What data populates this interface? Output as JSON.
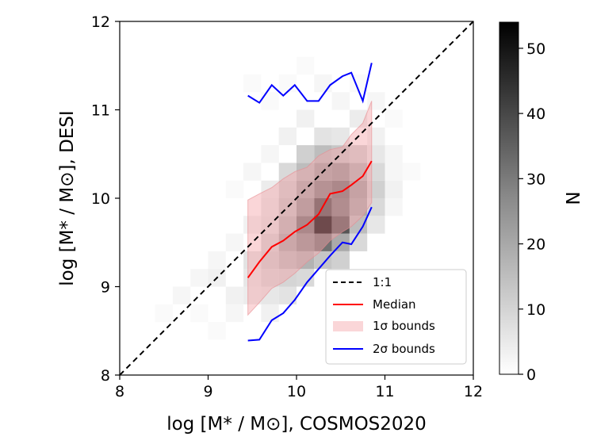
{
  "chart_data": {
    "type": "heatmap",
    "xlabel": "log [M* / M⊙], COSMOS2020",
    "ylabel": "log [M* / M⊙], DESI",
    "xlim": [
      8,
      12
    ],
    "ylim": [
      8,
      12
    ],
    "xticks": [
      "8",
      "9",
      "10",
      "11",
      "12"
    ],
    "yticks": [
      "8",
      "9",
      "10",
      "11",
      "12"
    ],
    "grid": false,
    "bin_width": 0.2,
    "hist_cells": [
      [
        8.4,
        8.6,
        1
      ],
      [
        8.6,
        8.8,
        2
      ],
      [
        8.8,
        8.6,
        1
      ],
      [
        8.8,
        9.0,
        2
      ],
      [
        9.0,
        8.4,
        1
      ],
      [
        9.0,
        9.0,
        3
      ],
      [
        9.0,
        9.2,
        2
      ],
      [
        9.2,
        8.6,
        2
      ],
      [
        9.2,
        8.8,
        3
      ],
      [
        9.2,
        9.4,
        2
      ],
      [
        9.2,
        10.0,
        1
      ],
      [
        9.4,
        8.8,
        4
      ],
      [
        9.4,
        9.0,
        5
      ],
      [
        9.4,
        9.2,
        6
      ],
      [
        9.4,
        9.6,
        3
      ],
      [
        9.4,
        10.2,
        2
      ],
      [
        9.4,
        11.2,
        1
      ],
      [
        9.6,
        8.6,
        3
      ],
      [
        9.6,
        8.8,
        5
      ],
      [
        9.6,
        9.0,
        8
      ],
      [
        9.6,
        9.2,
        10
      ],
      [
        9.6,
        9.4,
        9
      ],
      [
        9.6,
        9.6,
        6
      ],
      [
        9.6,
        9.8,
        5
      ],
      [
        9.6,
        10.0,
        4
      ],
      [
        9.6,
        10.4,
        2
      ],
      [
        9.6,
        11.0,
        1
      ],
      [
        9.8,
        8.8,
        6
      ],
      [
        9.8,
        9.0,
        9
      ],
      [
        9.8,
        9.2,
        14
      ],
      [
        9.8,
        9.4,
        18
      ],
      [
        9.8,
        9.6,
        15
      ],
      [
        9.8,
        9.8,
        12
      ],
      [
        9.8,
        10.0,
        10
      ],
      [
        9.8,
        10.2,
        8
      ],
      [
        9.8,
        10.6,
        3
      ],
      [
        9.8,
        11.2,
        1
      ],
      [
        10.0,
        9.0,
        8
      ],
      [
        10.0,
        9.2,
        16
      ],
      [
        10.0,
        9.4,
        24
      ],
      [
        10.0,
        9.6,
        30
      ],
      [
        10.0,
        9.8,
        22
      ],
      [
        10.0,
        10.0,
        18
      ],
      [
        10.0,
        10.2,
        14
      ],
      [
        10.0,
        10.4,
        10
      ],
      [
        10.0,
        10.8,
        3
      ],
      [
        10.0,
        11.4,
        1
      ],
      [
        10.2,
        9.2,
        12
      ],
      [
        10.2,
        9.4,
        30
      ],
      [
        10.2,
        9.6,
        54
      ],
      [
        10.2,
        9.8,
        38
      ],
      [
        10.2,
        10.0,
        26
      ],
      [
        10.2,
        10.2,
        20
      ],
      [
        10.2,
        10.4,
        14
      ],
      [
        10.2,
        10.6,
        6
      ],
      [
        10.2,
        11.2,
        2
      ],
      [
        10.4,
        9.2,
        10
      ],
      [
        10.4,
        9.4,
        18
      ],
      [
        10.4,
        9.6,
        36
      ],
      [
        10.4,
        9.8,
        28
      ],
      [
        10.4,
        10.0,
        30
      ],
      [
        10.4,
        10.2,
        22
      ],
      [
        10.4,
        10.4,
        12
      ],
      [
        10.4,
        10.6,
        5
      ],
      [
        10.4,
        11.0,
        2
      ],
      [
        10.6,
        9.4,
        8
      ],
      [
        10.6,
        9.6,
        14
      ],
      [
        10.6,
        9.8,
        18
      ],
      [
        10.6,
        10.0,
        20
      ],
      [
        10.6,
        10.2,
        16
      ],
      [
        10.6,
        10.4,
        10
      ],
      [
        10.6,
        10.8,
        4
      ],
      [
        10.6,
        11.2,
        1
      ],
      [
        10.8,
        9.6,
        5
      ],
      [
        10.8,
        9.8,
        8
      ],
      [
        10.8,
        10.0,
        10
      ],
      [
        10.8,
        10.2,
        8
      ],
      [
        10.8,
        10.4,
        5
      ],
      [
        10.8,
        10.6,
        3
      ],
      [
        10.8,
        11.0,
        2
      ],
      [
        11.0,
        9.8,
        2
      ],
      [
        11.0,
        10.0,
        3
      ],
      [
        11.0,
        10.2,
        2
      ],
      [
        11.0,
        10.4,
        2
      ],
      [
        11.0,
        10.8,
        1
      ],
      [
        11.2,
        10.2,
        1
      ]
    ],
    "series": [
      {
        "name": "1:1",
        "style": "dashed",
        "color": "#000000",
        "x": [
          8,
          12
        ],
        "y": [
          8,
          12
        ]
      },
      {
        "name": "Median",
        "style": "solid",
        "color": "#ff0000",
        "x": [
          9.45,
          9.58,
          9.72,
          9.85,
          9.98,
          10.12,
          10.25,
          10.38,
          10.52,
          10.62,
          10.75,
          10.85
        ],
        "y": [
          9.1,
          9.28,
          9.45,
          9.52,
          9.62,
          9.7,
          9.82,
          10.05,
          10.08,
          10.15,
          10.25,
          10.42
        ]
      },
      {
        "name": "2σ bounds",
        "style": "solid",
        "color": "#0000ff",
        "x": [
          9.45,
          9.58,
          9.72,
          9.85,
          9.98,
          10.12,
          10.25,
          10.38,
          10.52,
          10.62,
          10.75,
          10.85
        ],
        "y": [
          8.39,
          8.4,
          8.62,
          8.7,
          8.85,
          9.05,
          9.2,
          9.35,
          9.5,
          9.48,
          9.68,
          9.9
        ]
      },
      {
        "name": "2σ upper",
        "style": "solid",
        "color": "#0000ff",
        "x": [
          9.45,
          9.58,
          9.72,
          9.85,
          9.98,
          10.12,
          10.25,
          10.38,
          10.52,
          10.62,
          10.75,
          10.85
        ],
        "y": [
          11.16,
          11.08,
          11.28,
          11.16,
          11.28,
          11.1,
          11.1,
          11.28,
          11.38,
          11.42,
          11.1,
          11.53
        ]
      }
    ],
    "band": {
      "name": "1σ bounds",
      "color": "#f4a3a8",
      "opacity": 0.45,
      "x": [
        9.45,
        9.58,
        9.72,
        9.85,
        9.98,
        10.12,
        10.25,
        10.38,
        10.52,
        10.62,
        10.75,
        10.85
      ],
      "lower": [
        8.68,
        8.82,
        8.98,
        9.05,
        9.15,
        9.28,
        9.38,
        9.52,
        9.62,
        9.68,
        9.8,
        9.95
      ],
      "upper": [
        9.98,
        10.05,
        10.12,
        10.22,
        10.3,
        10.35,
        10.48,
        10.55,
        10.58,
        10.72,
        10.85,
        11.1
      ]
    },
    "legend": {
      "position": "lower-right",
      "entries": [
        "1:1",
        "Median",
        "1σ bounds",
        "2σ bounds"
      ]
    },
    "colorbar": {
      "label": "N",
      "min": 0,
      "max": 54,
      "ticks": [
        "0",
        "10",
        "20",
        "30",
        "40",
        "50"
      ]
    }
  }
}
